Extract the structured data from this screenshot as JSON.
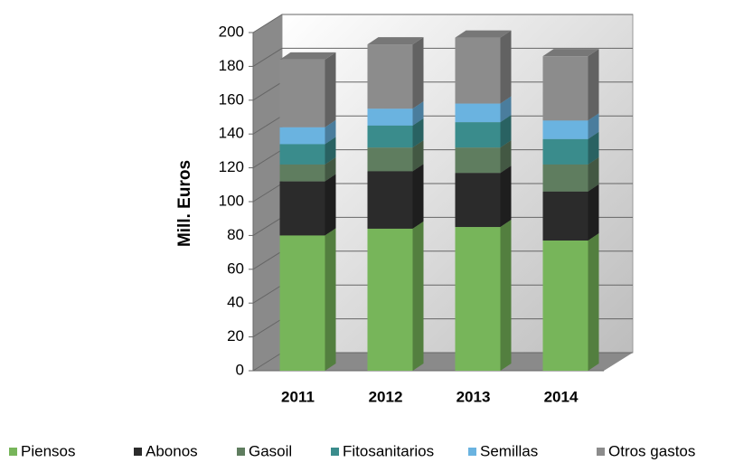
{
  "chart_data": {
    "type": "bar3d_stacked",
    "y_label": "Mill. Euros",
    "categories": [
      "2011",
      "2012",
      "2013",
      "2014"
    ],
    "series": [
      {
        "name": "Piensos",
        "color": "#77b55a",
        "values": [
          80,
          84,
          85,
          77
        ]
      },
      {
        "name": "Abonos",
        "color": "#2b2b2b",
        "values": [
          32,
          34,
          32,
          29
        ]
      },
      {
        "name": "Gasoil",
        "color": "#5f7d5f",
        "values": [
          10,
          14,
          15,
          16
        ]
      },
      {
        "name": "Fitosanitarios",
        "color": "#3a8c8c",
        "values": [
          12,
          13,
          15,
          15
        ]
      },
      {
        "name": "Semillas",
        "color": "#6ab3e0",
        "values": [
          10,
          10,
          11,
          11
        ]
      },
      {
        "name": "Otros gastos",
        "color": "#8c8c8c",
        "values": [
          40,
          38,
          39,
          38
        ]
      }
    ],
    "ylim": [
      0,
      200
    ],
    "yticks": [
      0,
      20,
      40,
      60,
      80,
      100,
      120,
      140,
      160,
      180,
      200
    ],
    "grid": true,
    "legend": "bottom"
  }
}
